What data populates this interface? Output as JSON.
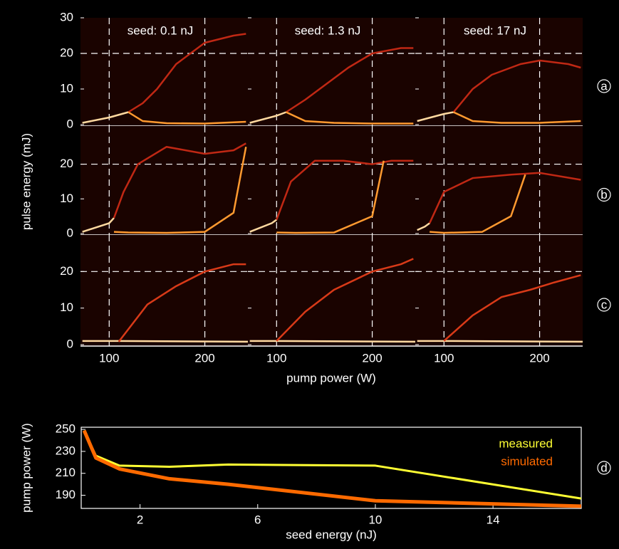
{
  "chart_data": [
    {
      "type": "bifurcation",
      "xlabel": "pump power (W)",
      "ylabel": "pulse energy (mJ)",
      "xlim": [
        70,
        245
      ],
      "xticks": [
        100,
        200
      ],
      "ref_y": 20,
      "column_titles": [
        "seed: 0.1 nJ",
        "seed: 1.3 nJ",
        "seed: 17 nJ"
      ],
      "rows": [
        {
          "label": "a",
          "ylim": [
            0,
            30
          ],
          "yticks": [
            0,
            10,
            20,
            30
          ],
          "panels": [
            {
              "series": [
                {
                  "color": "#ffd9a0",
                  "x": [
                    72,
                    100,
                    120
                  ],
                  "values": [
                    0.5,
                    2,
                    3.5
                  ]
                },
                {
                  "color": "#c02814",
                  "x": [
                    120,
                    135,
                    150,
                    170,
                    200,
                    230,
                    243
                  ],
                  "values": [
                    3.5,
                    6,
                    10,
                    17,
                    23,
                    25,
                    25.5
                  ]
                },
                {
                  "color": "#ff9a30",
                  "x": [
                    120,
                    135,
                    160,
                    200,
                    243
                  ],
                  "values": [
                    3.5,
                    1,
                    0.4,
                    0.3,
                    0.8
                  ]
                }
              ]
            },
            {
              "series": [
                {
                  "color": "#ffd9a0",
                  "x": [
                    72,
                    100,
                    110
                  ],
                  "values": [
                    0.5,
                    2.5,
                    3.5
                  ]
                },
                {
                  "color": "#c02814",
                  "x": [
                    110,
                    130,
                    150,
                    175,
                    200,
                    230,
                    243
                  ],
                  "values": [
                    3.5,
                    7,
                    11,
                    16,
                    20,
                    21.5,
                    21.5
                  ]
                },
                {
                  "color": "#ff9a30",
                  "x": [
                    110,
                    130,
                    160,
                    200,
                    243
                  ],
                  "values": [
                    3.5,
                    1,
                    0.5,
                    0.3,
                    0.3
                  ]
                }
              ]
            },
            {
              "series": [
                {
                  "color": "#ffd9a0",
                  "x": [
                    72,
                    100,
                    110
                  ],
                  "values": [
                    1,
                    3,
                    3.5
                  ]
                },
                {
                  "color": "#c02814",
                  "x": [
                    110,
                    130,
                    150,
                    180,
                    200,
                    230,
                    243
                  ],
                  "values": [
                    3.5,
                    10,
                    14,
                    17,
                    18,
                    17,
                    16
                  ]
                },
                {
                  "color": "#ff9a30",
                  "x": [
                    110,
                    130,
                    160,
                    200,
                    243
                  ],
                  "values": [
                    3.5,
                    1,
                    0.5,
                    0.5,
                    1
                  ]
                }
              ]
            }
          ]
        },
        {
          "label": "b",
          "ylim": [
            0,
            31
          ],
          "yticks": [
            0,
            10,
            20
          ],
          "panels": [
            {
              "series": [
                {
                  "color": "#ffd9a0",
                  "x": [
                    72,
                    100,
                    105
                  ],
                  "values": [
                    0.5,
                    3,
                    4.5
                  ]
                },
                {
                  "color": "#c02814",
                  "x": [
                    105,
                    115,
                    130,
                    160,
                    200,
                    230,
                    243
                  ],
                  "values": [
                    4.5,
                    12,
                    20,
                    25,
                    23,
                    24,
                    26
                  ]
                },
                {
                  "color": "#ff9a30",
                  "x": [
                    105,
                    120,
                    160,
                    200,
                    230,
                    243
                  ],
                  "values": [
                    0.5,
                    0.3,
                    0.2,
                    0.5,
                    6,
                    25
                  ]
                }
              ]
            },
            {
              "series": [
                {
                  "color": "#ffd9a0",
                  "x": [
                    72,
                    95,
                    100
                  ],
                  "values": [
                    0.5,
                    3,
                    4
                  ]
                },
                {
                  "color": "#c02814",
                  "x": [
                    100,
                    115,
                    140,
                    170,
                    200,
                    220,
                    243
                  ],
                  "values": [
                    4,
                    15,
                    21,
                    21,
                    20,
                    21,
                    21
                  ]
                },
                {
                  "color": "#ff9a30",
                  "x": [
                    100,
                    120,
                    160,
                    200,
                    212
                  ],
                  "values": [
                    0.3,
                    0.2,
                    0.3,
                    5,
                    21
                  ]
                }
              ]
            },
            {
              "series": [
                {
                  "color": "#ffd9a0",
                  "x": [
                    72,
                    80,
                    85
                  ],
                  "values": [
                    1,
                    2,
                    3
                  ]
                },
                {
                  "color": "#c02814",
                  "x": [
                    85,
                    100,
                    130,
                    170,
                    200,
                    243
                  ],
                  "values": [
                    3,
                    12,
                    16,
                    17,
                    17.5,
                    15.5
                  ]
                },
                {
                  "color": "#ff9a30",
                  "x": [
                    85,
                    100,
                    140,
                    170,
                    185
                  ],
                  "values": [
                    0.5,
                    0.2,
                    0.5,
                    5,
                    17
                  ]
                }
              ]
            }
          ]
        },
        {
          "label": "c",
          "ylim": [
            0,
            30
          ],
          "yticks": [
            0,
            10,
            20
          ],
          "panels": [
            {
              "series": [
                {
                  "color": "#ffd9a0",
                  "x": [
                    72,
                    110,
                    245
                  ],
                  "values": [
                    1,
                    1,
                    0.8
                  ]
                },
                {
                  "color": "#d83a18",
                  "x": [
                    110,
                    140,
                    170,
                    200,
                    230,
                    243
                  ],
                  "values": [
                    0.8,
                    11,
                    16,
                    20,
                    22,
                    22
                  ]
                }
              ]
            },
            {
              "series": [
                {
                  "color": "#ffd9a0",
                  "x": [
                    72,
                    100,
                    245
                  ],
                  "values": [
                    1,
                    1,
                    0.8
                  ]
                },
                {
                  "color": "#d83a18",
                  "x": [
                    100,
                    130,
                    160,
                    200,
                    230,
                    243
                  ],
                  "values": [
                    1,
                    9,
                    15,
                    20,
                    22,
                    23.5
                  ]
                }
              ]
            },
            {
              "series": [
                {
                  "color": "#ffd9a0",
                  "x": [
                    72,
                    100,
                    245
                  ],
                  "values": [
                    1,
                    1,
                    0.8
                  ]
                },
                {
                  "color": "#d83a18",
                  "x": [
                    100,
                    130,
                    160,
                    190,
                    215,
                    243
                  ],
                  "values": [
                    1,
                    8,
                    13,
                    15,
                    17,
                    19
                  ]
                }
              ]
            }
          ]
        }
      ]
    },
    {
      "type": "line",
      "label": "d",
      "xlabel": "seed energy (nJ)",
      "ylabel": "pump power (W)",
      "xlim": [
        0,
        17
      ],
      "xticks": [
        2,
        6,
        10,
        14
      ],
      "ylim": [
        178,
        252
      ],
      "yticks": [
        190,
        210,
        230,
        250
      ],
      "series": [
        {
          "name": "measured",
          "color": "#ffff33",
          "x": [
            0.1,
            0.5,
            1.3,
            3,
            5,
            10,
            17
          ],
          "values": [
            249,
            226,
            217,
            216,
            218,
            217,
            187
          ]
        },
        {
          "name": "simulated",
          "color": "#ff6a00",
          "x": [
            0.1,
            0.5,
            1.3,
            3,
            5,
            10,
            17
          ],
          "values": [
            249,
            224,
            214,
            205,
            200,
            185,
            180
          ]
        }
      ]
    }
  ]
}
